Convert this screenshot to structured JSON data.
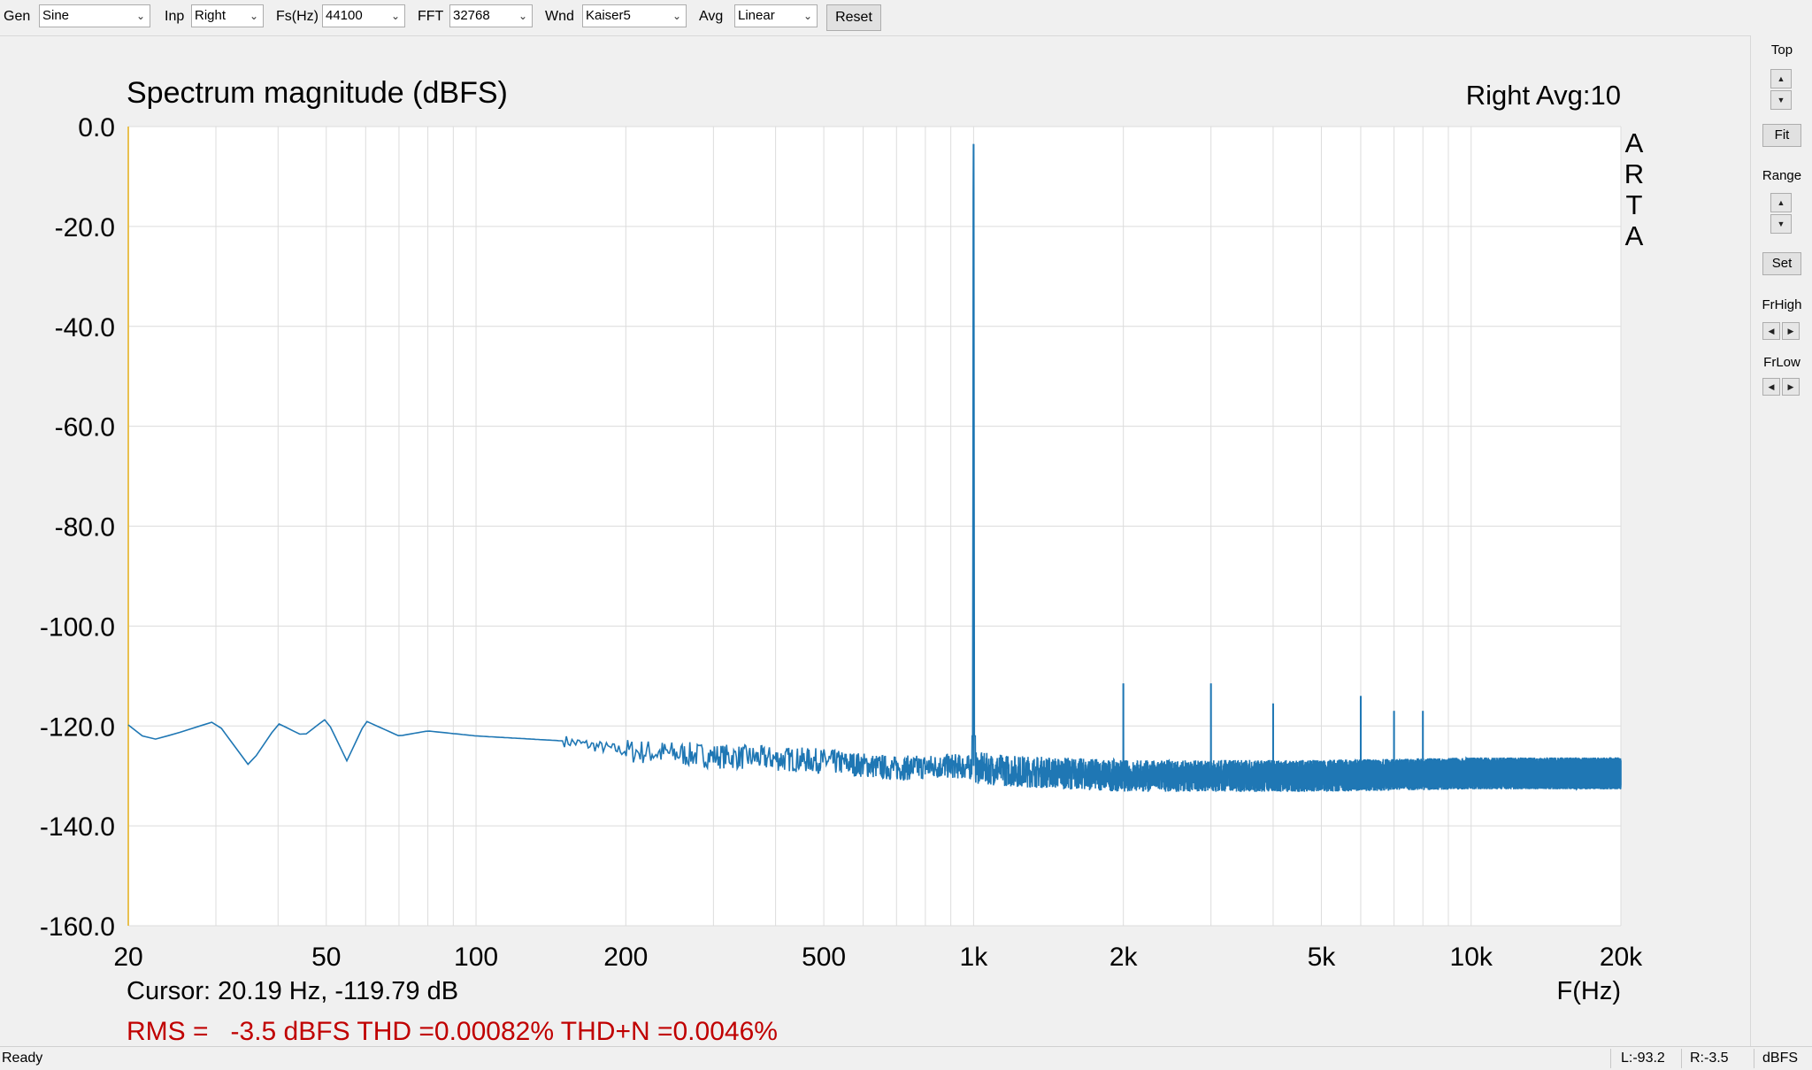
{
  "toolbar": {
    "gen_label": "Gen",
    "gen_value": "Sine",
    "inp_label": "Inp",
    "inp_value": "Right",
    "fs_label": "Fs(Hz)",
    "fs_value": "44100",
    "fft_label": "FFT",
    "fft_value": "32768",
    "wnd_label": "Wnd",
    "wnd_value": "Kaiser5",
    "avg_label": "Avg",
    "avg_value": "Linear",
    "reset_label": "Reset"
  },
  "plot": {
    "title": "Spectrum magnitude (dBFS)",
    "channel_info": "Right  Avg:10",
    "brand_letters": [
      "A",
      "R",
      "T",
      "A"
    ],
    "cursor_text": "Cursor: 20.19 Hz, -119.79 dB",
    "x_unit": "F(Hz)",
    "measurement_text": "RMS =   -3.5 dBFS THD =0.00082% THD+N =0.0046%",
    "colors": {
      "trace": "#1f77b4",
      "measurement": "#c00000",
      "grid": "#dcdcdc",
      "background": "#ffffff",
      "left_axis": "#e8c050"
    }
  },
  "chart_data": {
    "type": "line",
    "title": "Spectrum magnitude (dBFS)",
    "xlabel": "F(Hz)",
    "ylabel": "",
    "x_scale": "log",
    "xlim": [
      20,
      20000
    ],
    "ylim": [
      -160,
      0
    ],
    "x_ticks": [
      20,
      50,
      100,
      200,
      500,
      1000,
      2000,
      5000,
      10000,
      20000
    ],
    "x_tick_labels": [
      "20",
      "50",
      "100",
      "200",
      "500",
      "1k",
      "2k",
      "5k",
      "10k",
      "20k"
    ],
    "y_ticks": [
      0,
      -20,
      -40,
      -60,
      -80,
      -100,
      -120,
      -140,
      -160
    ],
    "y_tick_labels": [
      "0.0",
      "-20.0",
      "-40.0",
      "-60.0",
      "-80.0",
      "-100.0",
      "-120.0",
      "-140.0",
      "-160.0"
    ],
    "grid": true,
    "series": [
      {
        "noise_floor": [
          [
            20,
            -119.8
          ],
          [
            22,
            -123
          ],
          [
            25,
            -121.5
          ],
          [
            30,
            -119
          ],
          [
            35,
            -128
          ],
          [
            40,
            -119.5
          ],
          [
            45,
            -122
          ],
          [
            50,
            -118.5
          ],
          [
            55,
            -127
          ],
          [
            60,
            -119
          ],
          [
            70,
            -122
          ],
          [
            80,
            -121
          ],
          [
            100,
            -122
          ],
          [
            150,
            -123
          ],
          [
            200,
            -125
          ],
          [
            300,
            -126
          ],
          [
            500,
            -127
          ],
          [
            700,
            -128.5
          ],
          [
            900,
            -128
          ],
          [
            1200,
            -129
          ],
          [
            2000,
            -130
          ],
          [
            5000,
            -130
          ],
          [
            10000,
            -129.5
          ],
          [
            20000,
            -129.5
          ]
        ],
        "peaks": [
          {
            "x": 1000,
            "y": -3.5
          },
          {
            "x": 2000,
            "y": -111.5
          },
          {
            "x": 3000,
            "y": -111.5
          },
          {
            "x": 4000,
            "y": -115.5
          },
          {
            "x": 6000,
            "y": -114
          },
          {
            "x": 7000,
            "y": -117
          },
          {
            "x": 8000,
            "y": -117
          }
        ]
      }
    ]
  },
  "right_panel": {
    "top_label": "Top",
    "fit_label": "Fit",
    "range_label": "Range",
    "set_label": "Set",
    "frhigh_label": "FrHigh",
    "frlow_label": "FrLow"
  },
  "status": {
    "ready": "Ready",
    "left_level": "L:-93.2",
    "right_level": "R:-3.5",
    "unit": "dBFS"
  }
}
